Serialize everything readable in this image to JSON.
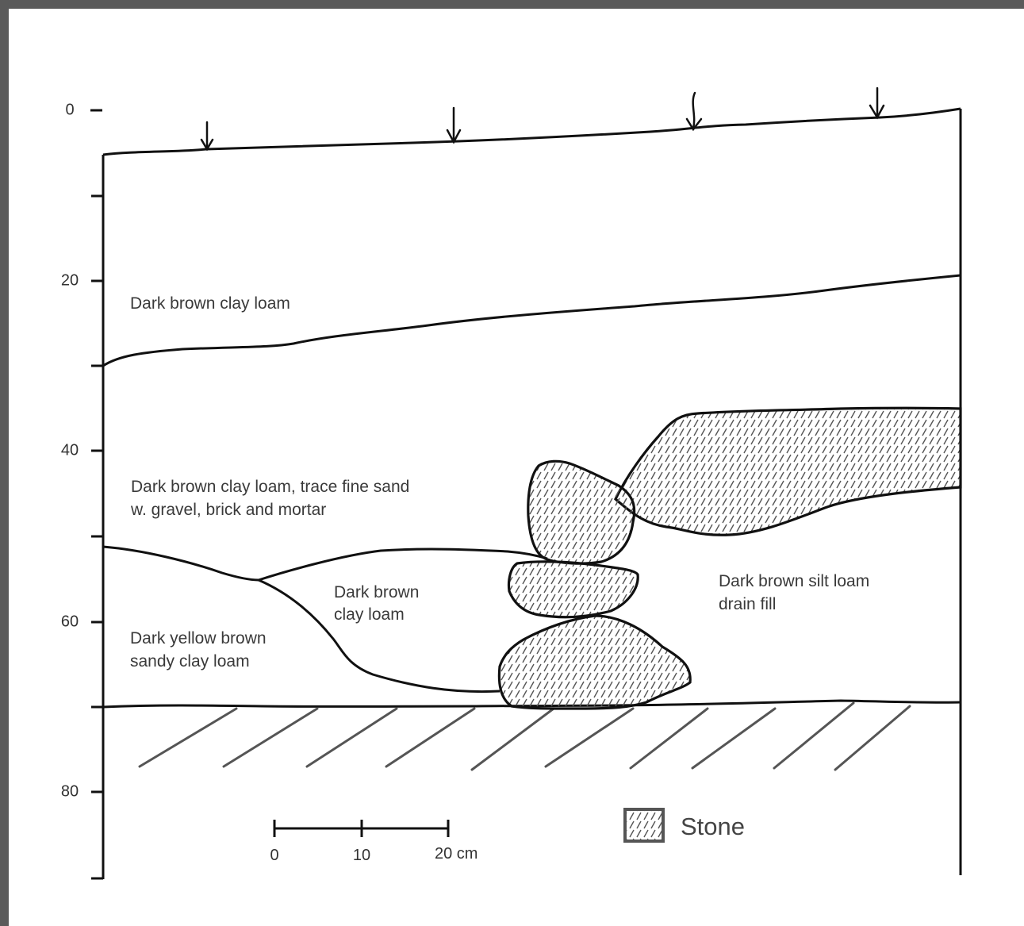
{
  "depth_axis": {
    "ticks": [
      "0",
      "20",
      "40",
      "60",
      "80"
    ]
  },
  "layers": [
    {
      "lines": [
        "Dark brown clay loam"
      ]
    },
    {
      "lines": [
        "Dark brown clay loam, trace fine sand",
        "w. gravel, brick and mortar"
      ]
    },
    {
      "lines": [
        "Dark brown",
        "clay loam"
      ]
    },
    {
      "lines": [
        "Dark yellow brown",
        "sandy clay loam"
      ]
    },
    {
      "lines": [
        "Dark brown silt loam",
        "drain fill"
      ]
    }
  ],
  "scale_bar": {
    "labels": [
      "0",
      "10",
      "20 cm"
    ]
  },
  "legend": {
    "stone_label": "Stone"
  },
  "colors": {
    "line": "#111111",
    "text": "#3a3a3a",
    "frame": "#5a5a5a",
    "hatch": "#555555"
  }
}
